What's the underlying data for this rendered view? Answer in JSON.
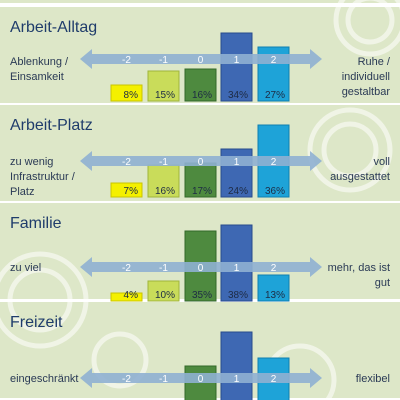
{
  "chart_data": [
    {
      "type": "bar",
      "title": "",
      "left_label": "",
      "right_label": "",
      "categories": [
        "-2",
        "-1",
        "0",
        "1",
        "2"
      ],
      "values": [
        null,
        null,
        null,
        34,
        27
      ],
      "value_labels": []
    },
    {
      "type": "bar",
      "title": "Arbeit-Alltag",
      "left_label": "Ablenkung / Einsamkeit",
      "right_label": "Ruhe / individuell gestaltbar",
      "categories": [
        "-2",
        "-1",
        "0",
        "1",
        "2"
      ],
      "values": [
        8,
        15,
        16,
        34,
        27
      ],
      "value_labels": [
        "8%",
        "15%",
        "16%",
        "34%",
        "27%"
      ]
    },
    {
      "type": "bar",
      "title": "Arbeit-Platz",
      "left_label": "zu wenig Infrastruktur / Platz",
      "right_label": "voll ausgestattet",
      "categories": [
        "-2",
        "-1",
        "0",
        "1",
        "2"
      ],
      "values": [
        7,
        16,
        17,
        24,
        36
      ],
      "value_labels": [
        "7%",
        "16%",
        "17%",
        "24%",
        "36%"
      ]
    },
    {
      "type": "bar",
      "title": "Familie",
      "left_label": "zu viel",
      "right_label": "mehr, das ist gut",
      "categories": [
        "-2",
        "-1",
        "0",
        "1",
        "2"
      ],
      "values": [
        4,
        10,
        35,
        38,
        13
      ],
      "value_labels": [
        "4%",
        "10%",
        "35%",
        "38%",
        "13%"
      ]
    },
    {
      "type": "bar",
      "title": "Freizeit",
      "left_label": "eingeschränkt",
      "right_label": "flexibel",
      "categories": [
        "-2",
        "-1",
        "0",
        "1",
        "2"
      ],
      "values": [
        null,
        null,
        23,
        40,
        27
      ],
      "value_labels": []
    }
  ],
  "colors": {
    "background_band": "#dde7c8",
    "separator": "#ffffff",
    "title": "#1f3c6b",
    "arrow": "#8fb0d2",
    "bar_fills": [
      "#f4f000",
      "#c9dc5a",
      "#4e8a3f",
      "#3e68b3",
      "#1ea3d8"
    ],
    "bar_edges": [
      "#c9c400",
      "#9fb43a",
      "#33682a",
      "#284b8c",
      "#0f7fb0"
    ]
  }
}
